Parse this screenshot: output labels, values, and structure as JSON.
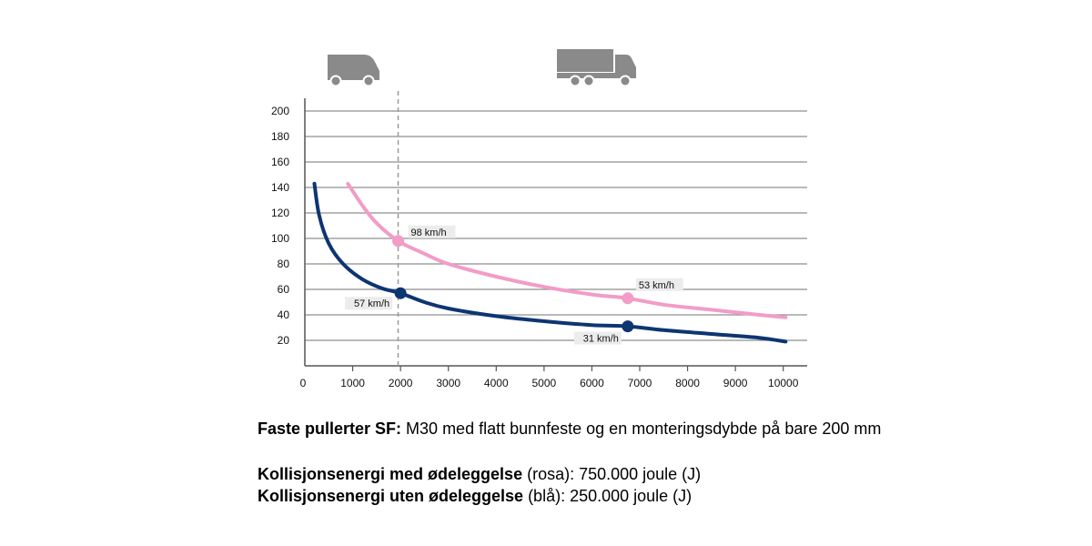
{
  "chart_data": {
    "type": "line",
    "x_ticks": [
      "0",
      "1000",
      "2000",
      "3000",
      "4000",
      "5000",
      "6000",
      "7000",
      "8000",
      "9000",
      "10000"
    ],
    "y_ticks": [
      "20",
      "40",
      "60",
      "80",
      "100",
      "120",
      "140",
      "160",
      "180",
      "200"
    ],
    "xlim": [
      0,
      10500
    ],
    "ylim": [
      0,
      210
    ],
    "grid": "horizontal",
    "reference_line_x": 1950,
    "series": [
      {
        "color": "#f29cc8",
        "x": [
          900,
          1200,
          1500,
          1950,
          2500,
          3000,
          4000,
          5000,
          6000,
          6750,
          7500,
          8500,
          9500,
          10050
        ],
        "y": [
          143,
          126,
          112,
          98,
          88,
          80,
          70,
          62,
          56,
          53,
          48,
          44,
          40,
          38
        ]
      },
      {
        "color": "#0d3572",
        "x": [
          200,
          300,
          500,
          800,
          1200,
          1600,
          2000,
          2500,
          3000,
          4000,
          5000,
          6000,
          6750,
          7500,
          8500,
          9500,
          10050
        ],
        "y": [
          143,
          118,
          96,
          80,
          68,
          61,
          57,
          50,
          45,
          39,
          35,
          32,
          31,
          28,
          25,
          22,
          19
        ]
      }
    ],
    "points": [
      {
        "x": 1950,
        "y": 98,
        "label": "98 km/h",
        "color": "#f29cc8"
      },
      {
        "x": 6750,
        "y": 53,
        "label": "53 km/h",
        "color": "#f29cc8"
      },
      {
        "x": 2000,
        "y": 57,
        "label": "57 km/h",
        "color": "#0d3572"
      },
      {
        "x": 6750,
        "y": 31,
        "label": "31 km/h",
        "color": "#0d3572"
      }
    ],
    "icons": [
      "van-icon",
      "truck-icon"
    ]
  },
  "caption": {
    "line1_bold": "Faste pullerter SF:",
    "line1_rest": " M30 med flatt bunnfeste og en monteringsdybde på bare 200 mm",
    "line2_bold": "Kollisjonsenergi med ødeleggelse",
    "line2_rest": " (rosa): 750.000 joule (J)",
    "line3_bold": "Kollisjonsenergi uten ødeleggelse",
    "line3_rest": " (blå): 250.000 joule (J)"
  }
}
